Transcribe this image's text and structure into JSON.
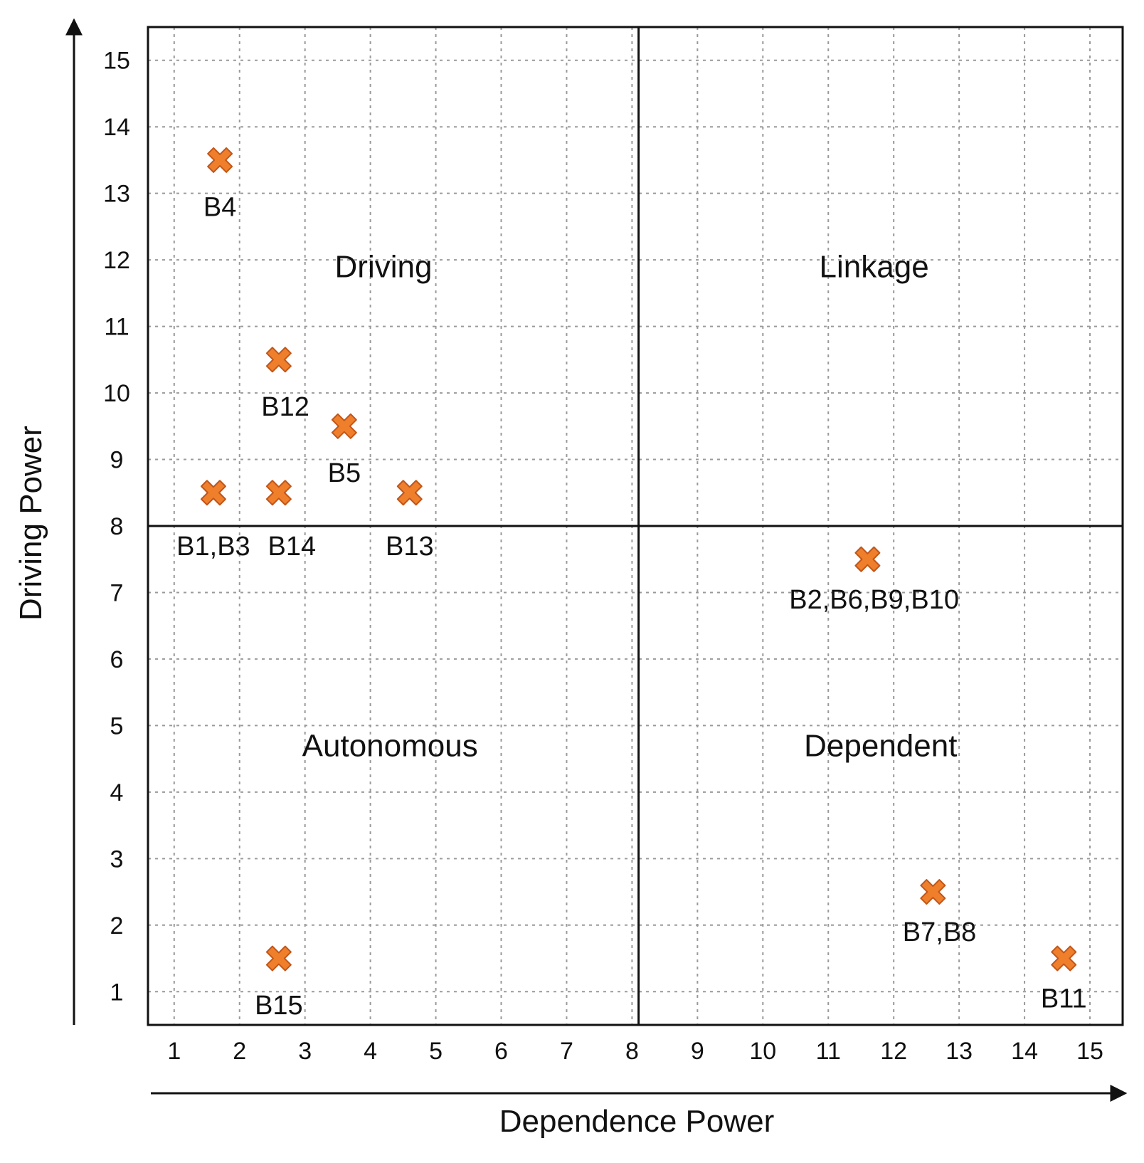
{
  "chart_data": {
    "type": "scatter",
    "title": "",
    "xlabel": "Dependence Power",
    "ylabel": "Driving Power",
    "xlim": [
      0.6,
      15.5
    ],
    "ylim": [
      0.5,
      15.5
    ],
    "x_ticks": [
      1,
      2,
      3,
      4,
      5,
      6,
      7,
      8,
      9,
      10,
      11,
      12,
      13,
      14,
      15
    ],
    "y_ticks": [
      1,
      2,
      3,
      4,
      5,
      6,
      7,
      8,
      9,
      10,
      11,
      12,
      13,
      14,
      15
    ],
    "grid": true,
    "divider": {
      "x": 8.1,
      "y": 8.0
    },
    "marker_color": "#F07F2C",
    "marker_edge_color": "#C0561A",
    "quadrants": [
      {
        "label": "Driving",
        "x": 4.2,
        "y": 11.9
      },
      {
        "label": "Linkage",
        "x": 11.7,
        "y": 11.9
      },
      {
        "label": "Autonomous",
        "x": 4.3,
        "y": 4.7
      },
      {
        "label": "Dependent",
        "x": 11.8,
        "y": 4.7
      }
    ],
    "points": [
      {
        "label": "B4",
        "x": 1.7,
        "y": 13.5,
        "label_x": 1.7,
        "label_y": 12.8
      },
      {
        "label": "B12",
        "x": 2.6,
        "y": 10.5,
        "label_x": 2.7,
        "label_y": 9.8
      },
      {
        "label": "B5",
        "x": 3.6,
        "y": 9.5,
        "label_x": 3.6,
        "label_y": 8.8
      },
      {
        "label": "B1,B3",
        "x": 1.6,
        "y": 8.5,
        "label_x": 1.6,
        "label_y": 7.7
      },
      {
        "label": "B14",
        "x": 2.6,
        "y": 8.5,
        "label_x": 2.8,
        "label_y": 7.7
      },
      {
        "label": "B13",
        "x": 4.6,
        "y": 8.5,
        "label_x": 4.6,
        "label_y": 7.7
      },
      {
        "label": "B15",
        "x": 2.6,
        "y": 1.5,
        "label_x": 2.6,
        "label_y": 0.8
      },
      {
        "label": "B2,B6,B9,B10",
        "x": 11.6,
        "y": 7.5,
        "label_x": 11.7,
        "label_y": 6.9
      },
      {
        "label": "B7,B8",
        "x": 12.6,
        "y": 2.5,
        "label_x": 12.7,
        "label_y": 1.9
      },
      {
        "label": "B11",
        "x": 14.6,
        "y": 1.5,
        "label_x": 14.6,
        "label_y": 0.9
      }
    ]
  }
}
